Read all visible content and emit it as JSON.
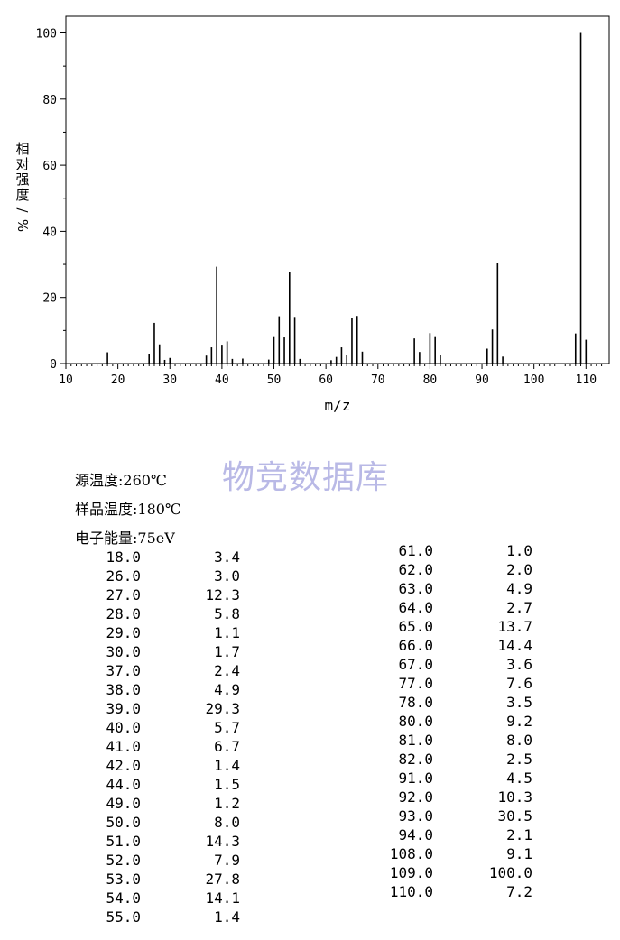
{
  "chart_data": {
    "type": "bar",
    "xlabel": "m/z",
    "ylabel": "相对强度/%",
    "xlim": [
      10,
      113
    ],
    "ylim": [
      0,
      105
    ],
    "xticks": [
      10,
      20,
      30,
      40,
      50,
      60,
      70,
      80,
      90,
      100,
      110
    ],
    "yticks": [
      0,
      20,
      40,
      60,
      80,
      100
    ],
    "x": [
      18,
      26,
      27,
      28,
      29,
      30,
      37,
      38,
      39,
      40,
      41,
      42,
      44,
      49,
      50,
      51,
      52,
      53,
      54,
      55,
      61,
      62,
      63,
      64,
      65,
      66,
      67,
      77,
      78,
      80,
      81,
      82,
      91,
      92,
      93,
      94,
      108,
      109,
      110
    ],
    "values": [
      3.4,
      3.0,
      12.3,
      5.8,
      1.1,
      1.7,
      2.4,
      4.9,
      29.3,
      5.7,
      6.7,
      1.4,
      1.5,
      1.2,
      8.0,
      14.3,
      7.9,
      27.8,
      14.1,
      1.4,
      1.0,
      2.0,
      4.9,
      2.7,
      13.7,
      14.4,
      3.6,
      7.6,
      3.5,
      9.2,
      8.0,
      2.5,
      4.5,
      10.3,
      30.5,
      2.1,
      9.1,
      100.0,
      7.2
    ]
  },
  "watermark": "物竞数据库",
  "conditions": {
    "source_temp": "源温度:260℃",
    "sample_temp": "样品温度:180℃",
    "electron_energy": "电子能量:75eV"
  },
  "peak_table": {
    "left": [
      [
        "18.0",
        "3.4"
      ],
      [
        "26.0",
        "3.0"
      ],
      [
        "27.0",
        "12.3"
      ],
      [
        "28.0",
        "5.8"
      ],
      [
        "29.0",
        "1.1"
      ],
      [
        "30.0",
        "1.7"
      ],
      [
        "37.0",
        "2.4"
      ],
      [
        "38.0",
        "4.9"
      ],
      [
        "39.0",
        "29.3"
      ],
      [
        "40.0",
        "5.7"
      ],
      [
        "41.0",
        "6.7"
      ],
      [
        "42.0",
        "1.4"
      ],
      [
        "44.0",
        "1.5"
      ],
      [
        "49.0",
        "1.2"
      ],
      [
        "50.0",
        "8.0"
      ],
      [
        "51.0",
        "14.3"
      ],
      [
        "52.0",
        "7.9"
      ],
      [
        "53.0",
        "27.8"
      ],
      [
        "54.0",
        "14.1"
      ],
      [
        "55.0",
        "1.4"
      ]
    ],
    "right": [
      [
        "61.0",
        "1.0"
      ],
      [
        "62.0",
        "2.0"
      ],
      [
        "63.0",
        "4.9"
      ],
      [
        "64.0",
        "2.7"
      ],
      [
        "65.0",
        "13.7"
      ],
      [
        "66.0",
        "14.4"
      ],
      [
        "67.0",
        "3.6"
      ],
      [
        "77.0",
        "7.6"
      ],
      [
        "78.0",
        "3.5"
      ],
      [
        "80.0",
        "9.2"
      ],
      [
        "81.0",
        "8.0"
      ],
      [
        "82.0",
        "2.5"
      ],
      [
        "91.0",
        "4.5"
      ],
      [
        "92.0",
        "10.3"
      ],
      [
        "93.0",
        "30.5"
      ],
      [
        "94.0",
        "2.1"
      ],
      [
        "108.0",
        "9.1"
      ],
      [
        "109.0",
        "100.0"
      ],
      [
        "110.0",
        "7.2"
      ]
    ]
  }
}
